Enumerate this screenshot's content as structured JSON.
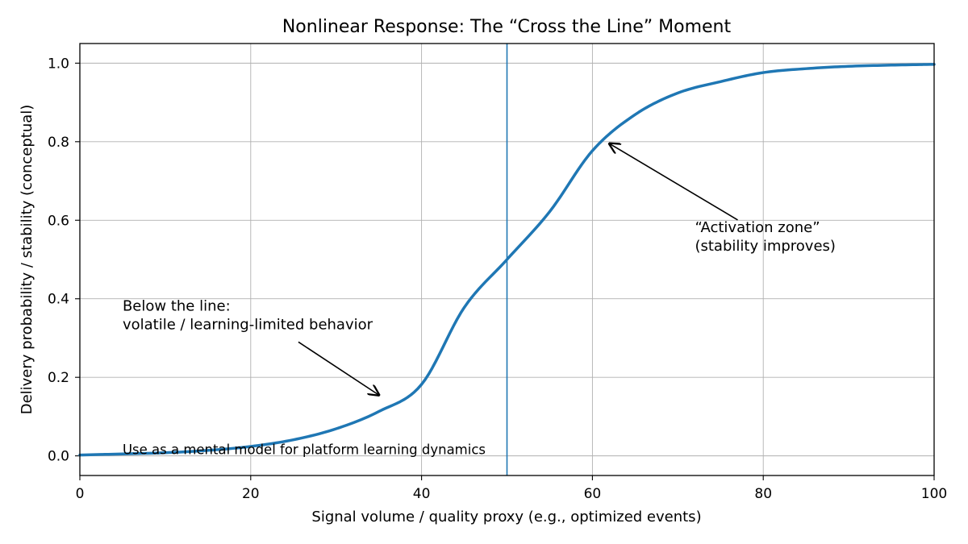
{
  "chart_data": {
    "type": "line",
    "title": "Nonlinear Response: The “Cross the Line” Moment",
    "xlabel": "Signal volume / quality proxy (e.g., optimized events)",
    "ylabel": "Delivery probability / stability (conceptual)",
    "xlim": [
      0,
      100
    ],
    "ylim": [
      -0.05,
      1.05
    ],
    "xticks": [
      0,
      20,
      40,
      60,
      80,
      100
    ],
    "xtick_labels": [
      "0",
      "20",
      "40",
      "60",
      "80",
      "100"
    ],
    "yticks": [
      0.0,
      0.2,
      0.4,
      0.6,
      0.8,
      1.0
    ],
    "ytick_labels": [
      "0.0",
      "0.2",
      "0.4",
      "0.6",
      "0.8",
      "1.0"
    ],
    "grid": true,
    "threshold_x": 50,
    "series": [
      {
        "color": "#1f77b4",
        "x": [
          0,
          5,
          10,
          15,
          20,
          25,
          30,
          35,
          40,
          45,
          50,
          55,
          60,
          65,
          70,
          75,
          80,
          85,
          90,
          95,
          100
        ],
        "y": [
          0.002,
          0.005,
          0.008,
          0.014,
          0.024,
          0.041,
          0.069,
          0.113,
          0.182,
          0.378,
          0.5,
          0.622,
          0.777,
          0.869,
          0.924,
          0.953,
          0.976,
          0.986,
          0.992,
          0.995,
          0.997
        ]
      }
    ],
    "annotations": [
      {
        "lines": [
          "“Activation zone”",
          "(stability improves)"
        ],
        "text_xy": [
          72,
          0.57
        ],
        "arrow_to": [
          62,
          0.795
        ]
      },
      {
        "lines": [
          "Below the line:",
          "volatile / learning-limited behavior"
        ],
        "text_xy": [
          5,
          0.37
        ],
        "arrow_to": [
          35,
          0.155
        ]
      }
    ],
    "footnote": "Use as a mental model for platform learning dynamics",
    "footnote_xy": [
      5,
      0.0
    ]
  }
}
